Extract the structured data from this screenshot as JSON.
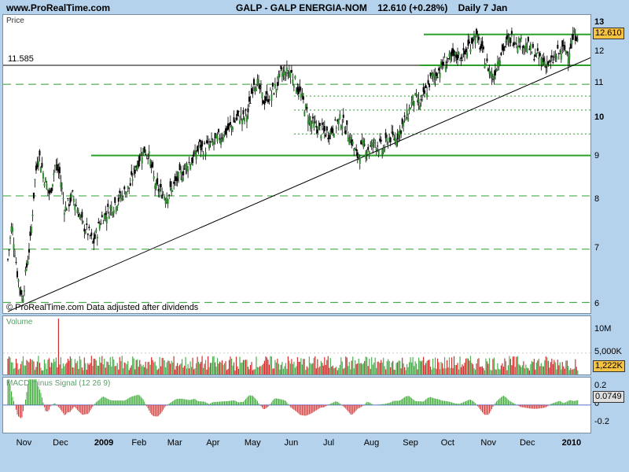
{
  "header": {
    "site": "www.ProRealTime.com",
    "symbol": "GALP - GALP ENERGIA-NOM",
    "last": "12.610 (+0.28%)",
    "period": "Daily  7 Jan"
  },
  "credit": "© ProRealTime.com  Data adjusted after dividends",
  "chart_data": [
    {
      "type": "candlestick",
      "title": "Price",
      "y_scale": "log",
      "ylim": [
        5.85,
        13.3
      ],
      "y_ticks": [
        "6",
        "7",
        "8",
        "9",
        "10",
        "11",
        "12",
        "13"
      ],
      "y_tick_values": [
        6,
        7,
        8,
        9,
        10,
        11,
        12,
        13
      ],
      "last_price_label": "12.610",
      "last_price": 12.61,
      "reference_line": {
        "label": "11.585",
        "value": 11.585
      },
      "support_resistance_solid": [
        12.61,
        11.585,
        9.05
      ],
      "support_resistance_dashed": [
        11.0,
        8.1,
        7.0,
        6.05
      ],
      "support_resistance_dotted": [
        10.65,
        10.25,
        9.6
      ],
      "trendline": {
        "from": [
          "2008-10-27",
          5.9
        ],
        "to": [
          "2010-01-07",
          11.85
        ]
      },
      "x_labels": [
        "Nov",
        "Dec",
        "2009",
        "Feb",
        "Mar",
        "Apr",
        "May",
        "Jun",
        "Jul",
        "Aug",
        "Sep",
        "Oct",
        "Nov",
        "Dec",
        "2010"
      ],
      "x_label_days": [
        21,
        66,
        117,
        163,
        207,
        255,
        302,
        351,
        399,
        449,
        497,
        544,
        593,
        641,
        693
      ],
      "path_keypoints_days": [
        0,
        5,
        12,
        18,
        28,
        34,
        38,
        45,
        52,
        58,
        64,
        70,
        80,
        92,
        100,
        105,
        115,
        125,
        135,
        150,
        158,
        167,
        173,
        182,
        195,
        200,
        210,
        220,
        230,
        236,
        240,
        255,
        265,
        275,
        285,
        290,
        296,
        303,
        308,
        315,
        324,
        330,
        336,
        348,
        355,
        362,
        368,
        373,
        385,
        395,
        410,
        422,
        430,
        437,
        445,
        452,
        462,
        470,
        478,
        490,
        500,
        508,
        515,
        522,
        530,
        538,
        546,
        554,
        562,
        575,
        582,
        590,
        598,
        605,
        612,
        620,
        628,
        640,
        650,
        655,
        668,
        675,
        685,
        690,
        698,
        703
      ],
      "path_keypoints_close": [
        6.8,
        7.5,
        6.5,
        6.1,
        7.2,
        8.6,
        9.1,
        8.5,
        8.1,
        8.8,
        8.6,
        7.8,
        8.1,
        7.5,
        7.3,
        7.1,
        7.6,
        7.8,
        8.0,
        8.3,
        8.8,
        9.2,
        9.1,
        8.3,
        8.1,
        8.2,
        8.5,
        8.8,
        9.0,
        9.3,
        9.2,
        9.4,
        9.6,
        9.8,
        10.1,
        10.0,
        10.2,
        11.1,
        11.0,
        10.5,
        10.7,
        10.9,
        11.3,
        11.4,
        11.0,
        10.6,
        10.2,
        9.9,
        9.7,
        9.6,
        10.0,
        9.5,
        9.0,
        9.3,
        9.2,
        9.4,
        9.2,
        9.5,
        9.5,
        10.0,
        10.6,
        10.4,
        10.8,
        11.2,
        11.4,
        11.7,
        11.8,
        11.9,
        11.9,
        12.6,
        12.2,
        11.6,
        11.2,
        11.9,
        12.2,
        12.5,
        12.4,
        12.2,
        11.9,
        11.8,
        11.6,
        11.9,
        12.1,
        12.0,
        12.6,
        12.6
      ]
    },
    {
      "type": "bar",
      "title": "Volume",
      "y_ticks": [
        "10M",
        "5,000K"
      ],
      "y_tick_values": [
        10000000,
        5000000
      ],
      "ylim": [
        0,
        13000000
      ],
      "last_value_label": "1,222K",
      "last_value": 1222000,
      "notable_spikes": [
        {
          "day": 62,
          "value": 12500000
        }
      ]
    },
    {
      "type": "bar",
      "title": "MACD minus Signal (12 26 9)",
      "y_ticks": [
        "0.2",
        "0",
        "-0.2"
      ],
      "y_tick_values": [
        0.2,
        0,
        -0.2
      ],
      "ylim": [
        -0.32,
        0.3
      ],
      "last_value_label": "0.0749",
      "last_value": 0.0749,
      "positive_color": "#3aaa35",
      "negative_color": "#d23a3a"
    }
  ],
  "colors": {
    "background": "#b4d2ec",
    "panel": "#ffffff",
    "candle_up": "#2f8f2f",
    "candle_down": "#000000",
    "support": "#2ca02c",
    "volume_up": "#4caf50",
    "volume_down": "#d32f2f",
    "price_tag": "#f5c242"
  }
}
